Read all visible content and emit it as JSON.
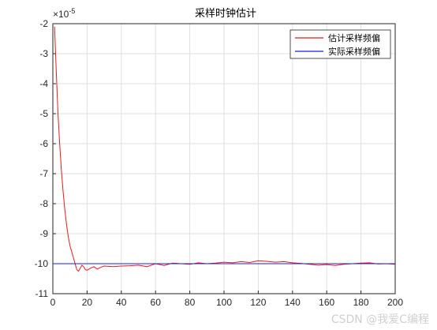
{
  "chart_data": {
    "type": "line",
    "title": "采样时钟估计",
    "xlabel": "",
    "ylabel": "",
    "xlim": [
      0,
      200
    ],
    "ylim": [
      -11,
      -2
    ],
    "y_exponent_label": "×10",
    "y_exponent_power": "-5",
    "x_ticks": [
      0,
      20,
      40,
      60,
      80,
      100,
      120,
      140,
      160,
      180,
      200
    ],
    "y_ticks": [
      -11,
      -10,
      -9,
      -8,
      -7,
      -6,
      -5,
      -4,
      -3,
      -2
    ],
    "grid": true,
    "legend_position": "top-right",
    "series": [
      {
        "name": "估计采样频偏",
        "color": "#e8191b",
        "x": [
          1,
          2,
          3,
          4,
          5,
          6,
          7,
          8,
          9,
          10,
          11,
          12,
          13,
          14,
          15,
          16,
          17,
          18,
          19,
          20,
          22,
          24,
          26,
          28,
          30,
          35,
          40,
          45,
          50,
          55,
          60,
          65,
          70,
          75,
          80,
          85,
          90,
          95,
          100,
          105,
          110,
          115,
          120,
          125,
          130,
          135,
          140,
          145,
          150,
          155,
          160,
          165,
          170,
          175,
          180,
          185,
          190,
          195,
          200
        ],
        "y": [
          -2.1,
          -3.6,
          -5.0,
          -6.0,
          -6.9,
          -7.6,
          -8.2,
          -8.7,
          -9.1,
          -9.4,
          -9.6,
          -9.8,
          -10.0,
          -10.2,
          -10.25,
          -10.15,
          -10.05,
          -10.1,
          -10.2,
          -10.22,
          -10.15,
          -10.1,
          -10.18,
          -10.12,
          -10.08,
          -10.1,
          -10.08,
          -10.07,
          -10.05,
          -10.1,
          -10.0,
          -10.06,
          -9.98,
          -10.0,
          -10.02,
          -9.97,
          -10.0,
          -9.98,
          -9.95,
          -9.97,
          -9.93,
          -9.96,
          -9.9,
          -9.92,
          -9.95,
          -9.93,
          -9.97,
          -9.99,
          -10.02,
          -10.05,
          -10.03,
          -10.06,
          -10.02,
          -10.0,
          -9.98,
          -9.97,
          -10.01,
          -10.0,
          -10.02
        ]
      },
      {
        "name": "实际采样频偏",
        "color": "#1f1fd8",
        "x": [
          0,
          200
        ],
        "y": [
          -10.0,
          -10.0
        ]
      }
    ]
  },
  "watermark": "CSDN @我爱C编程"
}
